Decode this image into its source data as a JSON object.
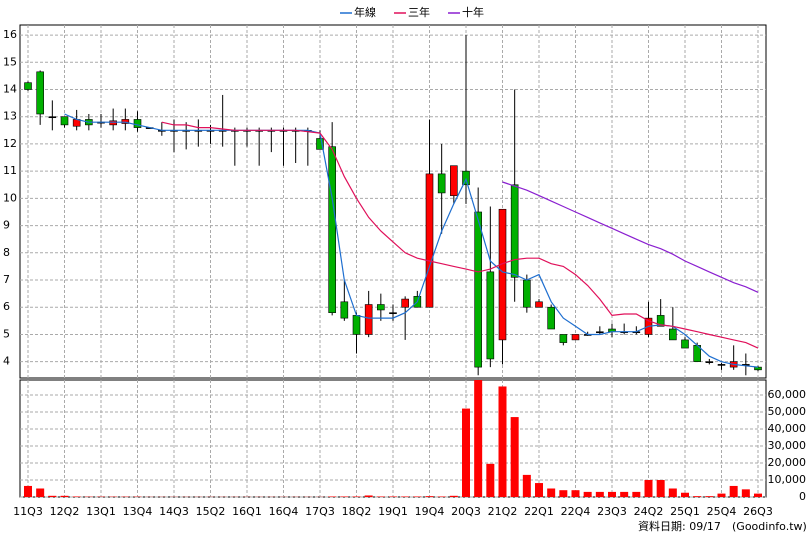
{
  "chart_data": {
    "type": "candlestick",
    "categories": [
      "11Q3",
      null,
      null,
      "12Q2",
      null,
      null,
      "13Q1",
      null,
      null,
      "13Q4",
      null,
      null,
      "14Q3",
      null,
      null,
      "15Q2",
      null,
      null,
      "16Q1",
      null,
      null,
      "16Q4",
      null,
      null,
      "17Q3",
      null,
      null,
      "18Q2",
      null,
      null,
      "19Q1",
      null,
      null,
      "19Q4",
      null,
      null,
      "20Q3",
      null,
      null,
      "21Q2",
      null,
      null,
      "22Q1",
      null,
      null,
      "22Q4",
      null,
      null,
      "23Q3",
      null,
      null,
      "24Q2",
      null,
      null,
      "25Q1",
      null,
      null,
      "25Q4",
      null,
      null,
      "26Q3"
    ],
    "open": [
      14.25,
      14.65,
      13.0,
      13.0,
      12.65,
      12.9,
      12.8,
      12.7,
      12.75,
      12.9,
      12.6,
      12.5,
      12.5,
      12.5,
      12.5,
      12.5,
      12.5,
      12.5,
      12.5,
      12.5,
      12.5,
      12.5,
      12.5,
      12.5,
      12.2,
      11.9,
      6.2,
      5.7,
      5.0,
      6.1,
      5.8,
      6.0,
      6.4,
      6.0,
      10.9,
      10.1,
      11.0,
      9.5,
      7.3,
      4.8,
      10.5,
      7.0,
      6.0,
      6.0,
      5.0,
      4.8,
      5.0,
      5.1,
      5.2,
      5.1,
      5.1,
      5.0,
      5.7,
      5.2,
      4.8,
      4.6,
      4.0,
      3.9,
      3.8,
      3.9,
      3.8
    ],
    "high": [
      14.3,
      14.7,
      13.6,
      13.0,
      13.25,
      13.1,
      13.1,
      13.3,
      13.3,
      13.2,
      12.6,
      12.8,
      12.9,
      12.8,
      12.9,
      12.7,
      13.8,
      12.6,
      12.6,
      12.6,
      12.6,
      12.6,
      12.6,
      12.6,
      12.5,
      12.8,
      7.0,
      5.8,
      6.6,
      6.5,
      6.1,
      6.4,
      6.6,
      12.9,
      12.0,
      11.2,
      16.0,
      10.4,
      9.7,
      9.6,
      14.0,
      7.2,
      6.3,
      6.1,
      5.0,
      5.0,
      5.1,
      5.3,
      5.4,
      5.4,
      5.3,
      6.2,
      6.3,
      6.0,
      4.9,
      4.7,
      4.1,
      3.95,
      4.6,
      4.3,
      3.85
    ],
    "low": [
      13.95,
      12.7,
      12.5,
      12.6,
      12.5,
      12.5,
      12.6,
      12.5,
      12.5,
      12.45,
      12.6,
      12.3,
      11.7,
      11.8,
      11.9,
      12.0,
      11.9,
      11.2,
      11.9,
      11.2,
      11.7,
      11.2,
      11.3,
      11.2,
      11.8,
      5.7,
      5.5,
      4.3,
      4.9,
      5.5,
      5.5,
      4.8,
      6.0,
      6.0,
      8.7,
      9.8,
      9.8,
      3.5,
      3.8,
      3.9,
      6.2,
      5.8,
      6.0,
      5.2,
      4.6,
      4.8,
      4.95,
      5.0,
      4.9,
      5.0,
      5.0,
      4.9,
      5.3,
      4.8,
      4.5,
      4.0,
      3.9,
      3.7,
      3.7,
      3.5,
      3.65
    ],
    "close": [
      14.0,
      13.1,
      13.0,
      12.7,
      12.9,
      12.7,
      12.8,
      12.85,
      12.9,
      12.6,
      12.6,
      12.5,
      12.5,
      12.5,
      12.5,
      12.5,
      12.5,
      12.5,
      12.5,
      12.5,
      12.5,
      12.5,
      12.5,
      12.5,
      11.8,
      5.8,
      5.6,
      5.0,
      6.1,
      5.9,
      5.8,
      6.3,
      6.0,
      10.9,
      10.2,
      11.2,
      10.5,
      3.8,
      4.1,
      9.6,
      7.1,
      6.0,
      6.2,
      5.2,
      4.7,
      5.0,
      5.0,
      5.1,
      5.1,
      5.1,
      5.1,
      5.6,
      5.3,
      4.8,
      4.5,
      4.0,
      4.0,
      3.9,
      4.0,
      3.9,
      3.7
    ],
    "up_color": "#ff0000",
    "down_color": "#00b000",
    "flat_color": "#000000",
    "series": [
      {
        "name": "年線",
        "color": "#1f6fd0",
        "values": [
          null,
          null,
          null,
          13.1,
          12.9,
          12.8,
          12.8,
          12.8,
          12.8,
          12.7,
          12.6,
          12.5,
          12.5,
          12.5,
          12.5,
          12.5,
          12.5,
          12.5,
          12.5,
          12.5,
          12.5,
          12.5,
          12.5,
          12.5,
          12.4,
          10.0,
          7.0,
          5.7,
          5.6,
          5.6,
          5.6,
          5.8,
          6.2,
          7.5,
          8.8,
          9.8,
          10.7,
          9.2,
          7.7,
          7.3,
          7.2,
          7.0,
          7.2,
          6.2,
          5.6,
          5.3,
          5.0,
          5.0,
          5.1,
          5.1,
          5.1,
          5.3,
          5.35,
          5.3,
          5.0,
          4.6,
          4.2,
          4.0,
          3.9,
          3.85,
          3.8
        ]
      },
      {
        "name": "三年",
        "color": "#e0105a",
        "values": [
          null,
          null,
          null,
          null,
          null,
          null,
          null,
          null,
          null,
          null,
          null,
          12.8,
          12.7,
          12.7,
          12.6,
          12.6,
          12.55,
          12.5,
          12.5,
          12.5,
          12.5,
          12.5,
          12.5,
          12.45,
          12.4,
          11.8,
          10.8,
          10.0,
          9.3,
          8.8,
          8.4,
          8.0,
          7.8,
          7.7,
          7.6,
          7.5,
          7.4,
          7.3,
          7.4,
          7.6,
          7.75,
          7.8,
          7.8,
          7.6,
          7.5,
          7.2,
          6.8,
          6.3,
          5.7,
          5.75,
          5.75,
          5.5,
          5.35,
          5.3,
          5.2,
          5.1,
          5.0,
          4.9,
          4.8,
          4.7,
          4.5
        ]
      },
      {
        "name": "十年",
        "color": "#8a1fd0",
        "values": [
          null,
          null,
          null,
          null,
          null,
          null,
          null,
          null,
          null,
          null,
          null,
          null,
          null,
          null,
          null,
          null,
          null,
          null,
          null,
          null,
          null,
          null,
          null,
          null,
          null,
          null,
          null,
          null,
          null,
          null,
          null,
          null,
          null,
          null,
          null,
          null,
          null,
          null,
          null,
          10.6,
          10.45,
          10.3,
          10.1,
          9.9,
          9.7,
          9.5,
          9.3,
          9.1,
          8.9,
          8.7,
          8.5,
          8.3,
          8.15,
          7.95,
          7.7,
          7.5,
          7.3,
          7.1,
          6.9,
          6.75,
          6.55
        ]
      }
    ],
    "ylim": [
      3.4,
      16.37
    ],
    "yticks": [
      4,
      5,
      6,
      7,
      8,
      9,
      10,
      11,
      12,
      13,
      14,
      15,
      16
    ],
    "volume": {
      "color": "#ff0000",
      "values": [
        6500,
        5000,
        700,
        700,
        300,
        200,
        200,
        200,
        200,
        200,
        100,
        100,
        100,
        100,
        100,
        100,
        100,
        100,
        100,
        100,
        100,
        100,
        100,
        100,
        100,
        300,
        300,
        300,
        900,
        300,
        300,
        300,
        300,
        500,
        300,
        700,
        52000,
        68800,
        19500,
        65000,
        47000,
        13000,
        8200,
        5000,
        4000,
        4000,
        3000,
        3000,
        3000,
        3000,
        3000,
        10000,
        10000,
        5000,
        2500,
        500,
        500,
        2000,
        6500,
        4500,
        2000
      ]
    },
    "y2lim": [
      0,
      68800
    ],
    "y2ticks": [
      0,
      {
        "value": 10000,
        "label": "10,000"
      },
      {
        "value": 20000,
        "label": "20,000"
      },
      {
        "value": 30000,
        "label": "30,000"
      },
      {
        "value": 40000,
        "label": "40,000"
      },
      {
        "value": 50000,
        "label": "50,000"
      },
      {
        "value": 60000,
        "label": "60,000"
      }
    ],
    "grid": true,
    "footer": "資料日期: 09/17",
    "source": "(Goodinfo.tw)"
  }
}
